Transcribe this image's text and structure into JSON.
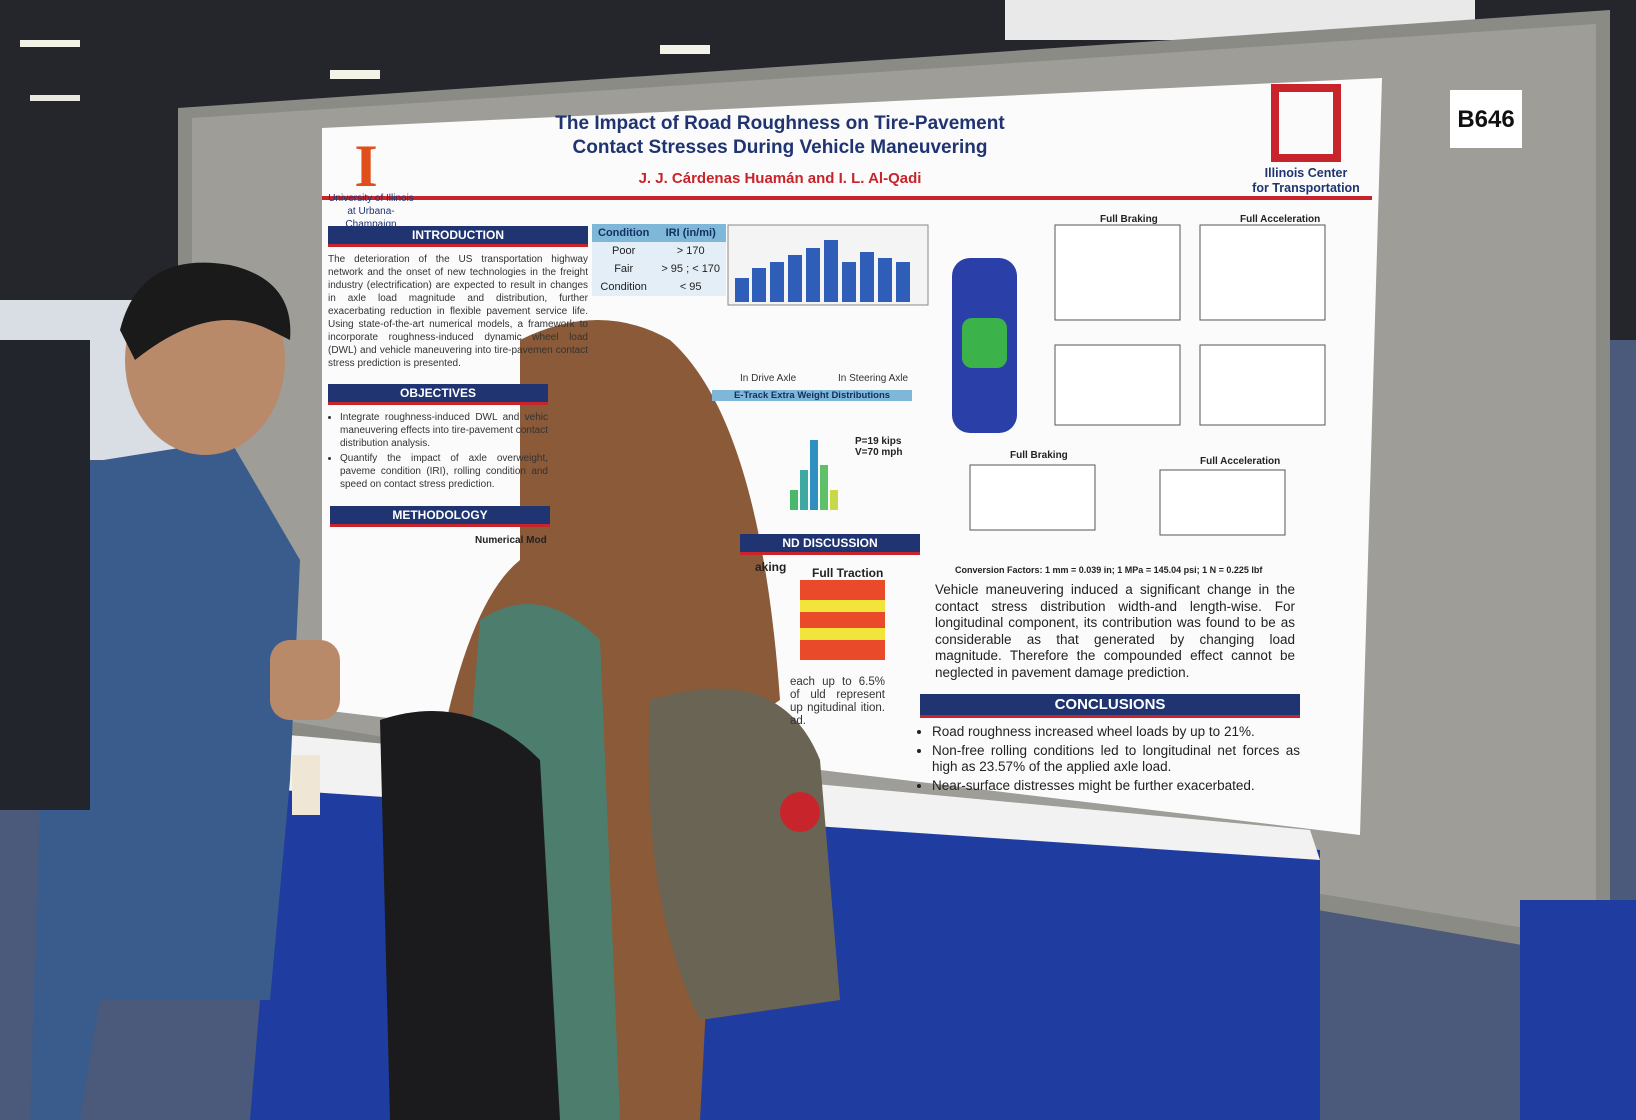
{
  "booth": "B646",
  "poster": {
    "title": [
      "The Impact of Road Roughness on Tire-Pavement",
      "Contact Stresses During Vehicle Maneuvering"
    ],
    "authors": "J. J. Cárdenas Huamán and I. L. Al-Qadi",
    "university": [
      "University of Illinois",
      "at Urbana-Champaign"
    ],
    "center": [
      "Illinois Center",
      "for Transportation"
    ],
    "introduction": {
      "heading": "INTRODUCTION",
      "text": "The deterioration of the US transportation highway network and the onset of new technologies in the freight industry (electrification) are expected to result in changes in axle load magnitude and distribution, further exacerbating reduction in flexible pavement service life. Using state-of-the-art numerical models, a framework to incorporate roughness-induced dynamic wheel load (DWL) and vehicle maneuvering into tire-pavemen contact stress prediction is presented."
    },
    "objectives": {
      "heading": "OBJECTIVES",
      "items": [
        "Integrate roughness-induced DWL and vehic maneuvering effects into tire-pavement contact distribution analysis.",
        "Quantify the impact of axle overweight, paveme condition (IRI), rolling condition and speed on contact stress prediction."
      ]
    },
    "methodology": {
      "heading": "METHODOLOGY",
      "label": "Numerical Mod"
    },
    "table": {
      "header": [
        "Condition",
        "IRI (in/mi)"
      ],
      "rows": [
        [
          "Poor",
          "> 170"
        ],
        [
          "Fair",
          "> 95 ; < 170"
        ],
        [
          "Condition",
          "< 95"
        ]
      ]
    },
    "figures": {
      "e_track": "E-Track Extra Weight Distributions",
      "drive": "In Drive Axle",
      "steering": "In Steering Axle",
      "histogram_note": [
        "P=19 kips",
        "V=70 mph"
      ],
      "full_braking": "Full Braking",
      "full_acceleration": "Full Acceleration",
      "braking_partial": "aking",
      "full_traction": "Full Traction",
      "conversion": "Conversion Factors: 1 mm = 0.039 in; 1 MPa = 145.04 psi; 1 N = 0.225 lbf"
    },
    "results": {
      "heading": "ND DISCUSSION",
      "text": "Vehicle maneuvering induced a significant change in the contact stress distribution width-and length-wise. For longitudinal component, its contribution was found to be as considerable as that generated by changing load magnitude. Therefore the compounded effect cannot be neglected in pavement damage prediction.",
      "partial": "each up to 6.5% of uld represent up ngitudinal ition. ad."
    },
    "conclusions": {
      "heading": "CONCLUSIONS",
      "items": [
        "Road roughness increased wheel loads by up to 21%.",
        "Non-free rolling conditions led to longitudinal net forces as high as 23.57% of the applied axle load.",
        "Near-surface distresses might be further exacerbated."
      ]
    }
  }
}
